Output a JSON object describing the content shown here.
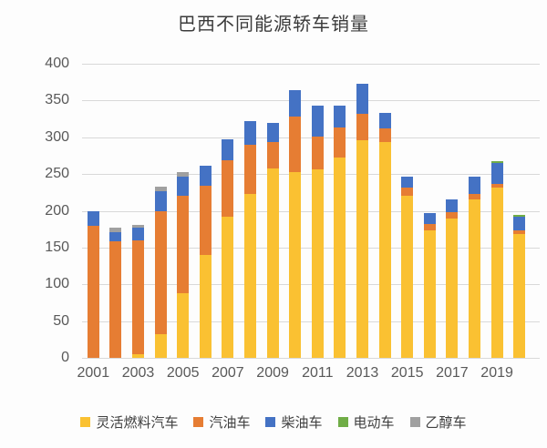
{
  "title": "巴西不同能源轿车销量",
  "chart_data": {
    "type": "bar",
    "stacked": true,
    "title": "巴西不同能源轿车销量",
    "categories": [
      "2001",
      "2002",
      "2003",
      "2004",
      "2005",
      "2006",
      "2007",
      "2008",
      "2009",
      "2010",
      "2011",
      "2012",
      "2013",
      "2014",
      "2015",
      "2016",
      "2017",
      "2018",
      "2019",
      "2020"
    ],
    "series": [
      {
        "name": "灵活燃料汽车",
        "color": "#FAC132",
        "values": [
          0,
          0,
          5,
          32,
          88,
          140,
          192,
          223,
          258,
          253,
          256,
          273,
          296,
          294,
          220,
          173,
          190,
          215,
          231,
          168
        ]
      },
      {
        "name": "汽油车",
        "color": "#E67D33",
        "values": [
          180,
          158,
          155,
          167,
          132,
          94,
          77,
          67,
          35,
          75,
          45,
          40,
          36,
          18,
          12,
          9,
          8,
          8,
          6,
          5
        ]
      },
      {
        "name": "柴油车",
        "color": "#4472C4",
        "values": [
          20,
          13,
          17,
          28,
          27,
          27,
          28,
          32,
          26,
          36,
          42,
          30,
          41,
          21,
          15,
          15,
          17,
          24,
          28,
          19
        ]
      },
      {
        "name": "电动车",
        "color": "#70AD47",
        "values": [
          0,
          0,
          0,
          0,
          0,
          0,
          0,
          0,
          0,
          0,
          0,
          0,
          0,
          0,
          0,
          0,
          0,
          0,
          2,
          2
        ]
      },
      {
        "name": "乙醇车",
        "color": "#A0A0A0",
        "values": [
          0,
          6,
          4,
          6,
          6,
          0,
          0,
          0,
          0,
          0,
          0,
          0,
          0,
          0,
          0,
          0,
          0,
          0,
          0,
          0
        ]
      }
    ],
    "ylim": [
      0,
      400
    ],
    "ytick_step": 50,
    "y_tick_labels": [
      "0",
      "50",
      "100",
      "150",
      "200",
      "250",
      "300",
      "350",
      "400"
    ],
    "x_tick_labels": [
      "2001",
      "2003",
      "2005",
      "2007",
      "2009",
      "2011",
      "2013",
      "2015",
      "2017",
      "2019"
    ],
    "x_tick_indices": [
      0,
      2,
      4,
      6,
      8,
      10,
      12,
      14,
      16,
      18
    ],
    "grid": true,
    "legend_position": "bottom",
    "grid_color": "#d9d9d9",
    "tick_color": "#595959"
  }
}
